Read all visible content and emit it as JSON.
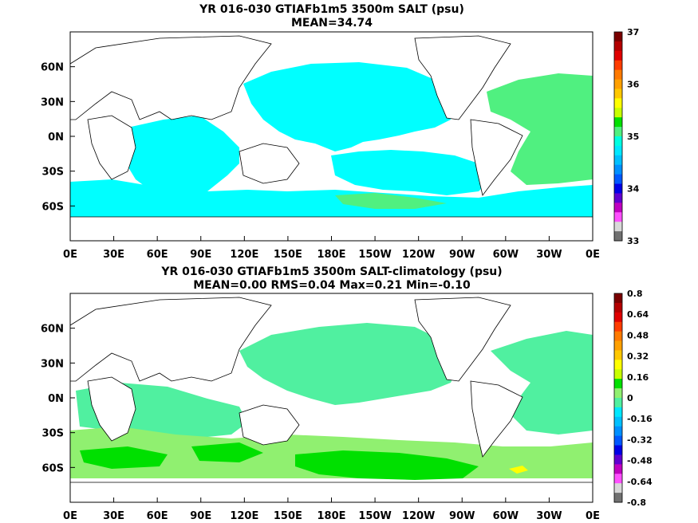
{
  "chart_data": [
    {
      "type": "heatmap",
      "title": "YR 016-030 GTIAFb1m5 3500m SALT (psu)",
      "subtitle": "MEAN=34.74",
      "x_ticks": [
        "0E",
        "30E",
        "60E",
        "90E",
        "120E",
        "150E",
        "180E",
        "150W",
        "120W",
        "90W",
        "60W",
        "30W",
        "0E"
      ],
      "y_ticks": [
        "60N",
        "30N",
        "0N",
        "30S",
        "60S"
      ],
      "colorbar": {
        "ticks": [
          "37",
          "36",
          "35",
          "34",
          "33"
        ],
        "colors": [
          "#7a0000",
          "#b40000",
          "#e00000",
          "#ff3c00",
          "#ff7a00",
          "#ffa000",
          "#ffc800",
          "#ffff00",
          "#c8ff00",
          "#00e000",
          "#50f080",
          "#00ffe0",
          "#00e8ff",
          "#00c0ff",
          "#0090ff",
          "#0058ff",
          "#0000e6",
          "#6000d0",
          "#c000c0",
          "#ff50ff",
          "#d8d8d8",
          "#707070"
        ]
      },
      "mean": 34.74
    },
    {
      "type": "heatmap",
      "title": "YR 016-030 GTIAFb1m5 3500m SALT-climatology (psu)",
      "subtitle": "MEAN=0.00   RMS=0.04   Max=0.21   Min=-0.10",
      "x_ticks": [
        "0E",
        "30E",
        "60E",
        "90E",
        "120E",
        "150E",
        "180E",
        "150W",
        "120W",
        "90W",
        "60W",
        "30W",
        "0E"
      ],
      "y_ticks": [
        "60N",
        "30N",
        "0N",
        "30S",
        "60S"
      ],
      "colorbar": {
        "ticks": [
          "0.8",
          "0.64",
          "0.48",
          "0.32",
          "0.16",
          "0",
          "-0.16",
          "-0.32",
          "-0.48",
          "-0.64",
          "-0.8"
        ],
        "colors": [
          "#7a0000",
          "#b40000",
          "#e00000",
          "#ff3c00",
          "#ff7a00",
          "#ffa000",
          "#ffc800",
          "#ffff00",
          "#c8ff00",
          "#00e000",
          "#90f070",
          "#50f0a0",
          "#00e8ff",
          "#00c0ff",
          "#0090ff",
          "#0058ff",
          "#0000e6",
          "#6000d0",
          "#c000c0",
          "#ff50ff",
          "#d8d8d8",
          "#707070"
        ]
      },
      "mean": 0.0,
      "rms": 0.04,
      "max": 0.21,
      "min": -0.1
    }
  ]
}
